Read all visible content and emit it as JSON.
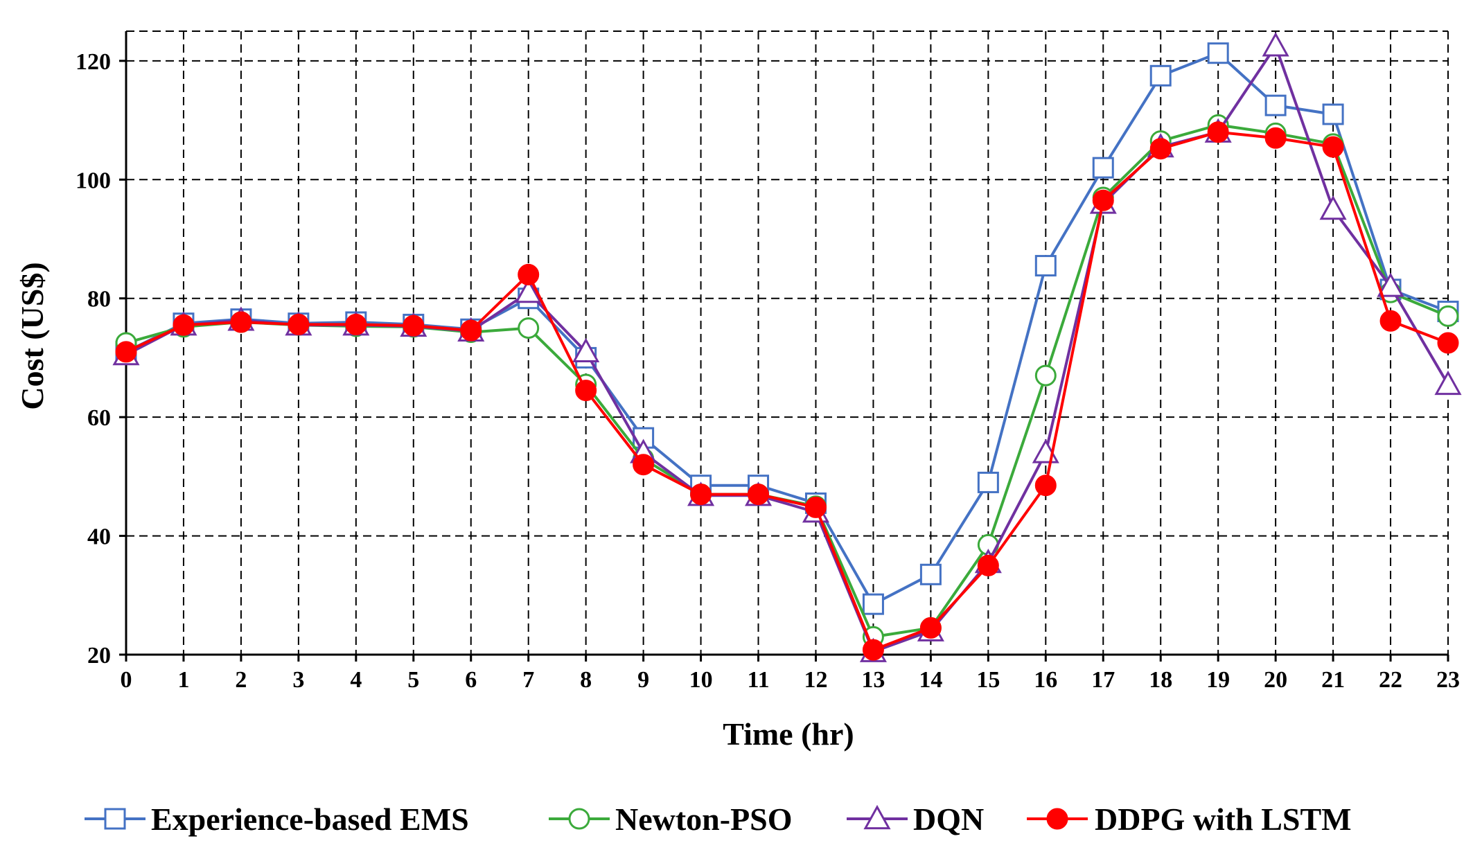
{
  "chart_data": {
    "type": "line",
    "title": "",
    "xlabel": "Time (hr)",
    "ylabel": "Cost (US$)",
    "xlim": [
      0,
      23
    ],
    "ylim": [
      20,
      125
    ],
    "x_ticks": [
      0,
      1,
      2,
      3,
      4,
      5,
      6,
      7,
      8,
      9,
      10,
      11,
      12,
      13,
      14,
      15,
      16,
      17,
      18,
      19,
      20,
      21,
      22,
      23
    ],
    "y_ticks": [
      20,
      40,
      60,
      80,
      100,
      120
    ],
    "grid": true,
    "legend_position": "bottom",
    "x": [
      0,
      1,
      2,
      3,
      4,
      5,
      6,
      7,
      8,
      9,
      10,
      11,
      12,
      13,
      14,
      15,
      16,
      17,
      18,
      19,
      20,
      21,
      22,
      23
    ],
    "series": [
      {
        "name": "Experience-based EMS",
        "color": "#4472C4",
        "marker": "square",
        "values": [
          71.0,
          75.8,
          76.5,
          75.8,
          76.0,
          75.6,
          74.8,
          80.0,
          70.0,
          56.5,
          48.5,
          48.5,
          45.5,
          28.5,
          33.5,
          49.0,
          85.5,
          102.0,
          117.5,
          121.3,
          112.5,
          111.0,
          81.5,
          77.8
        ]
      },
      {
        "name": "Newton-PSO",
        "color": "#3BAA3B",
        "marker": "circle",
        "values": [
          72.5,
          75.2,
          76.0,
          75.5,
          75.3,
          75.2,
          74.3,
          75.0,
          65.5,
          53.0,
          47.0,
          47.0,
          45.0,
          23.0,
          24.5,
          38.5,
          67.0,
          97.0,
          106.5,
          109.2,
          107.8,
          106.0,
          81.0,
          77.0
        ]
      },
      {
        "name": "DQN",
        "color": "#7030A0",
        "marker": "triangle",
        "values": [
          70.5,
          75.5,
          76.3,
          75.5,
          75.5,
          75.3,
          74.5,
          81.0,
          71.0,
          54.0,
          46.8,
          46.8,
          44.0,
          20.5,
          24.0,
          35.5,
          54.0,
          96.0,
          105.5,
          108.0,
          122.5,
          95.0,
          82.0,
          65.5
        ]
      },
      {
        "name": "DDPG with LSTM",
        "color": "#FF0000",
        "marker": "filled-circle",
        "values": [
          71.0,
          75.5,
          76.0,
          75.6,
          75.6,
          75.4,
          74.6,
          84.0,
          64.5,
          52.0,
          47.0,
          47.0,
          44.8,
          20.8,
          24.5,
          35.0,
          48.5,
          96.5,
          105.2,
          108.0,
          107.0,
          105.5,
          76.2,
          72.5
        ]
      }
    ]
  }
}
